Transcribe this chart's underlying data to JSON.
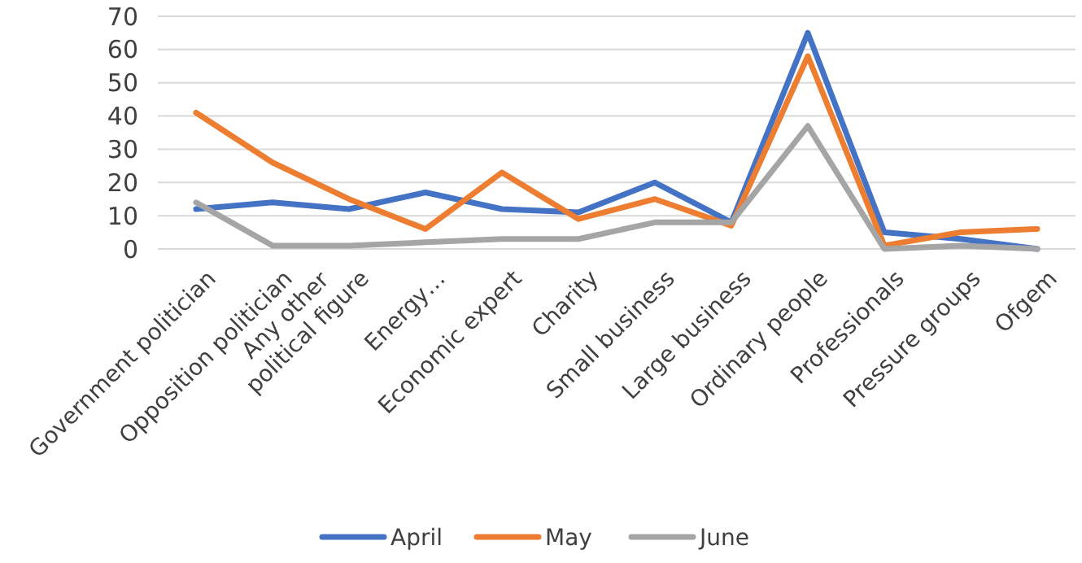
{
  "chart_data": {
    "type": "line",
    "categories": [
      "Government politician",
      "Opposition politician",
      "Any other political figure",
      "Energy…",
      "Economic expert",
      "Charity",
      "Small business",
      "Large business",
      "Ordinary people",
      "Professionals",
      "Pressure groups",
      "Ofgem"
    ],
    "series": [
      {
        "name": "April",
        "color": "#4472c4",
        "values": [
          12,
          14,
          12,
          17,
          12,
          11,
          20,
          8,
          65,
          5,
          3,
          0
        ]
      },
      {
        "name": "May",
        "color": "#ed7d31",
        "values": [
          41,
          26,
          15,
          6,
          23,
          9,
          15,
          7,
          58,
          1,
          5,
          6
        ]
      },
      {
        "name": "June",
        "color": "#a5a5a5",
        "values": [
          14,
          1,
          1,
          2,
          3,
          3,
          8,
          8,
          37,
          0,
          1,
          0
        ]
      }
    ],
    "ylim": [
      0,
      70
    ],
    "yticks": [
      0,
      10,
      20,
      30,
      40,
      50,
      60,
      70
    ],
    "grid": "y",
    "legend": "bottom",
    "marker": "none",
    "line_style": "solid"
  }
}
